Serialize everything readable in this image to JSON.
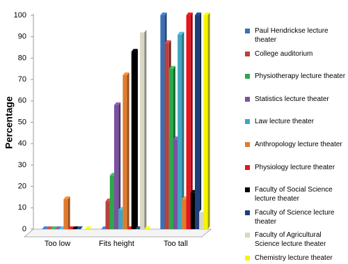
{
  "chart_data": {
    "type": "bar",
    "y_label": "Percentage",
    "categories": [
      "Too low",
      "Fits height",
      "Too tall"
    ],
    "ylim": [
      0,
      100
    ],
    "yticks": [
      0,
      10,
      20,
      30,
      40,
      50,
      60,
      70,
      80,
      90,
      100
    ],
    "series": [
      {
        "name": "Paul Hendrickse lecture theater",
        "color": "#3a6fb5",
        "values": [
          0,
          0,
          100
        ]
      },
      {
        "name": "College auditorium",
        "color": "#b8413d",
        "values": [
          0,
          13,
          87
        ]
      },
      {
        "name": "Physiotherapy lecture theater",
        "color": "#2ca84a",
        "values": [
          0,
          25,
          75
        ]
      },
      {
        "name": "Statistics lecture theater",
        "color": "#7a52a0",
        "values": [
          0,
          58,
          42
        ]
      },
      {
        "name": "Law lecture theater",
        "color": "#3fa6c0",
        "values": [
          0,
          9,
          91
        ]
      },
      {
        "name": "Anthropology lecture theater",
        "color": "#e07b2e",
        "values": [
          14,
          72,
          14
        ]
      },
      {
        "name": "Physiology lecture theater",
        "color": "#e8141b",
        "values": [
          0,
          0,
          100
        ]
      },
      {
        "name": "Faculty of Social Science lecture theater",
        "color": "#000000",
        "values": [
          0,
          83,
          17
        ]
      },
      {
        "name": "Faculty of Science lecture theater",
        "color": "#1f3f7a",
        "values": [
          0,
          0,
          100
        ]
      },
      {
        "name": "Faculty of Agricultural Science lecture theater",
        "color": "#d9d6c3",
        "values": [
          0,
          92,
          8
        ]
      },
      {
        "name": "Chemistry lecture theater",
        "color": "#f5f500",
        "values": [
          0,
          0,
          100
        ]
      }
    ]
  }
}
